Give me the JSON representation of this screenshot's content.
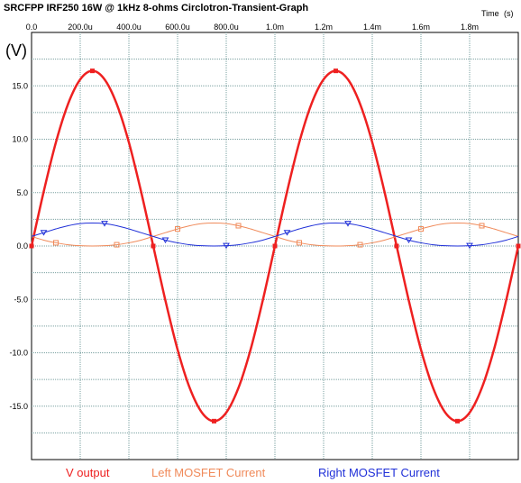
{
  "chart_data": {
    "type": "line",
    "title": "SRCFPP IRF250 16W @ 1kHz 8-ohms Circlotron-Transient-Graph",
    "xlabel": "Time",
    "xunit": "(s)",
    "ylabel": "(V)",
    "xlim": [
      0,
      0.002
    ],
    "ylim": [
      -20,
      20
    ],
    "x_ticks": [
      "0.0",
      "200.0u",
      "400.0u",
      "600.0u",
      "800.0u",
      "1.0m",
      "1.2m",
      "1.4m",
      "1.6m",
      "1.8m"
    ],
    "y_ticks": [
      "15.0",
      "10.0",
      "5.0",
      "0.0",
      "-5.0",
      "-10.0",
      "-15.0"
    ],
    "grid": true,
    "series": [
      {
        "name": "V output",
        "color": "#ee2020",
        "marker": "square-filled",
        "x": [
          0,
          5e-05,
          0.0001,
          0.00015,
          0.0002,
          0.00025,
          0.0003,
          0.00035,
          0.0004,
          0.00045,
          0.0005,
          0.00055,
          0.0006,
          0.00065,
          0.0007,
          0.00075,
          0.0008,
          0.00085,
          0.0009,
          0.00095,
          0.001,
          0.00105,
          0.0011,
          0.00115,
          0.0012,
          0.00125,
          0.0013,
          0.00135,
          0.0014,
          0.00145,
          0.0015,
          0.00155,
          0.0016,
          0.00165,
          0.0017,
          0.00175,
          0.0018,
          0.00185,
          0.0019,
          0.00195,
          0.002
        ],
        "values": [
          0,
          5.1,
          9.7,
          13.3,
          15.6,
          16.4,
          15.6,
          13.3,
          9.7,
          5.1,
          0,
          -5.1,
          -9.7,
          -13.3,
          -15.6,
          -16.4,
          -15.6,
          -13.3,
          -9.7,
          -5.1,
          0,
          5.1,
          9.7,
          13.3,
          15.6,
          16.4,
          15.6,
          13.3,
          9.7,
          5.1,
          0,
          -5.1,
          -9.7,
          -13.3,
          -15.6,
          -16.4,
          -15.6,
          -13.3,
          -9.7,
          -5.1,
          0
        ]
      },
      {
        "name": "Left MOSFET Current",
        "color": "#f08a5a",
        "marker": "square-open",
        "x": [
          0,
          5e-05,
          0.0001,
          0.00015,
          0.0002,
          0.00025,
          0.0003,
          0.00035,
          0.0004,
          0.00045,
          0.0005,
          0.00055,
          0.0006,
          0.00065,
          0.0007,
          0.00075,
          0.0008,
          0.00085,
          0.0009,
          0.00095,
          0.001,
          0.00105,
          0.0011,
          0.00115,
          0.0012,
          0.00125,
          0.0013,
          0.00135,
          0.0014,
          0.00145,
          0.0015,
          0.00155,
          0.0016,
          0.00165,
          0.0017,
          0.00175,
          0.0018,
          0.00185,
          0.0019,
          0.00195,
          0.002
        ],
        "values": [
          0.9,
          0.55,
          0.3,
          0.12,
          0.03,
          0,
          0.03,
          0.12,
          0.3,
          0.55,
          0.9,
          1.25,
          1.6,
          1.9,
          2.1,
          2.15,
          2.1,
          1.9,
          1.6,
          1.25,
          0.9,
          0.55,
          0.3,
          0.12,
          0.03,
          0,
          0.03,
          0.12,
          0.3,
          0.55,
          0.9,
          1.25,
          1.6,
          1.9,
          2.1,
          2.15,
          2.1,
          1.9,
          1.6,
          1.25,
          0.9
        ]
      },
      {
        "name": "Right MOSFET Current",
        "color": "#2030d8",
        "marker": "triangle-down",
        "x": [
          0,
          5e-05,
          0.0001,
          0.00015,
          0.0002,
          0.00025,
          0.0003,
          0.00035,
          0.0004,
          0.00045,
          0.0005,
          0.00055,
          0.0006,
          0.00065,
          0.0007,
          0.00075,
          0.0008,
          0.00085,
          0.0009,
          0.00095,
          0.001,
          0.00105,
          0.0011,
          0.00115,
          0.0012,
          0.00125,
          0.0013,
          0.00135,
          0.0014,
          0.00145,
          0.0015,
          0.00155,
          0.0016,
          0.00165,
          0.0017,
          0.00175,
          0.0018,
          0.00185,
          0.0019,
          0.00195,
          0.002
        ],
        "values": [
          0.9,
          1.25,
          1.6,
          1.9,
          2.1,
          2.15,
          2.1,
          1.9,
          1.6,
          1.25,
          0.9,
          0.55,
          0.3,
          0.12,
          0.03,
          0,
          0.03,
          0.12,
          0.3,
          0.55,
          0.9,
          1.25,
          1.6,
          1.9,
          2.1,
          2.15,
          2.1,
          1.9,
          1.6,
          1.25,
          0.9,
          0.55,
          0.3,
          0.12,
          0.03,
          0,
          0.03,
          0.12,
          0.3,
          0.55,
          0.9
        ]
      }
    ],
    "legend": [
      "V output",
      "Left MOSFET Current",
      "Right MOSFET Current"
    ],
    "legend_placement": "bottom"
  }
}
